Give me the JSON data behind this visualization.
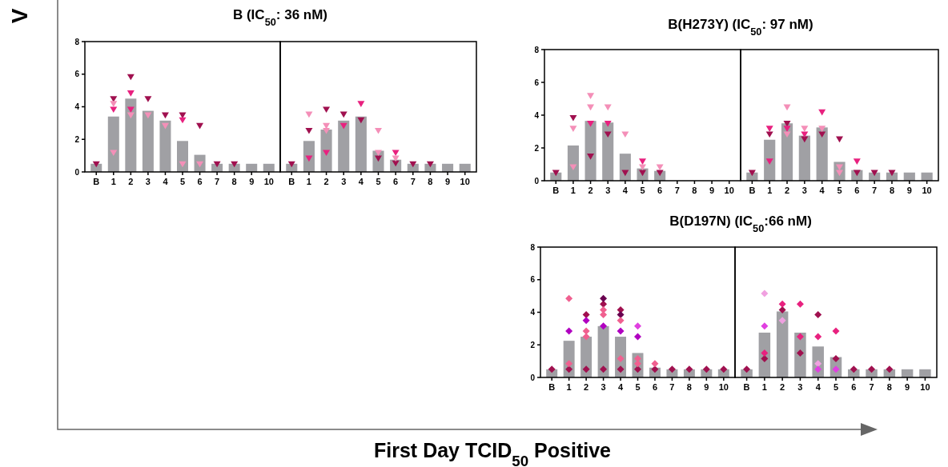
{
  "chart_data": [
    {
      "type": "bar",
      "title": "B (IC$_{50}$: 36 nM)",
      "xlabel": "First Day TCID$_{50}$ Positive",
      "ylabel": "V",
      "categories": [
        "B",
        "1",
        "2",
        "3",
        "4",
        "5",
        "6",
        "7",
        "8",
        "9",
        "10"
      ],
      "ylim": [
        0,
        8
      ],
      "yticks": [
        0,
        2,
        4,
        6,
        8
      ],
      "marker": "triangle",
      "series": [
        {
          "color": "#a0a0a4",
          "values": [
            0.5,
            3.4,
            4.5,
            3.75,
            3.15,
            1.9,
            1.05,
            0.5,
            0.5,
            0.5,
            0.5
          ]
        },
        {
          "type": "scatter",
          "color": "#a0104f",
          "x": [
            "B",
            "1",
            "2",
            "3",
            "4",
            "5",
            "6",
            "7",
            "8"
          ],
          "values": [
            0.5,
            4.5,
            5.85,
            4.5,
            3.5,
            3.5,
            2.85,
            0.5,
            0.5
          ]
        },
        {
          "type": "scatter",
          "color": "#e8217f",
          "x": [
            "1",
            "2",
            "2",
            "5"
          ],
          "values": [
            3.85,
            4.85,
            3.85,
            3.2
          ]
        },
        {
          "type": "scatter",
          "color": "#f48fb8",
          "x": [
            "1",
            "1",
            "2",
            "3",
            "4",
            "5",
            "6"
          ],
          "values": [
            4.2,
            1.2,
            3.5,
            3.5,
            2.85,
            0.5,
            0.5
          ]
        }
      ]
    },
    {
      "type": "bar",
      "categories": [
        "B",
        "1",
        "2",
        "3",
        "4",
        "5",
        "6",
        "7",
        "8",
        "9",
        "10"
      ],
      "ylim": [
        0,
        8
      ],
      "yticks": [
        0,
        2,
        4,
        6,
        8
      ],
      "tick_labels": "x",
      "marker": "triangle",
      "series": [
        {
          "color": "#a0a0a4",
          "values": [
            0.5,
            1.9,
            2.6,
            3.15,
            3.4,
            1.3,
            0.75,
            0.5,
            0.5,
            0.5,
            0.5
          ]
        },
        {
          "type": "scatter",
          "color": "#a0104f",
          "x": [
            "B",
            "1",
            "2",
            "3",
            "4",
            "5",
            "6",
            "7",
            "8"
          ],
          "values": [
            0.5,
            2.55,
            3.85,
            3.55,
            3.2,
            0.85,
            0.55,
            0.5,
            0.5
          ]
        },
        {
          "type": "scatter",
          "color": "#e8217f",
          "x": [
            "1",
            "2",
            "3",
            "4",
            "6"
          ],
          "values": [
            0.85,
            1.2,
            2.85,
            4.2,
            1.2
          ]
        },
        {
          "type": "scatter",
          "color": "#f48fb8",
          "x": [
            "1",
            "2",
            "2",
            "5",
            "5",
            "6"
          ],
          "values": [
            3.55,
            2.85,
            2.55,
            2.55,
            1.2,
            0.85
          ]
        }
      ]
    },
    {
      "type": "bar",
      "title": "B(H273Y) (IC$_{50}$: 97 nM)",
      "categories": [
        "B",
        "1",
        "2",
        "3",
        "4",
        "5",
        "6",
        "7",
        "8",
        "9",
        "10"
      ],
      "ylim": [
        0,
        8
      ],
      "yticks": [
        0,
        2,
        4,
        6,
        8
      ],
      "marker": "triangle",
      "series": [
        {
          "color": "#a0a0a4",
          "values": [
            0.5,
            2.15,
            3.65,
            3.55,
            1.65,
            0.75,
            0.6,
            null,
            null,
            null,
            null
          ]
        },
        {
          "type": "scatter",
          "color": "#a0104f",
          "x": [
            "B",
            "1",
            "2",
            "3",
            "4",
            "5",
            "6"
          ],
          "values": [
            0.5,
            3.85,
            1.5,
            2.85,
            0.5,
            0.5,
            0.5
          ]
        },
        {
          "type": "scatter",
          "color": "#e8217f",
          "x": [
            "2",
            "3",
            "5"
          ],
          "values": [
            3.5,
            3.5,
            1.2
          ]
        },
        {
          "type": "scatter",
          "color": "#f48fb8",
          "x": [
            "1",
            "1",
            "2",
            "2",
            "3",
            "4",
            "5",
            "6"
          ],
          "values": [
            3.2,
            0.85,
            5.2,
            4.5,
            4.5,
            2.85,
            0.85,
            0.85
          ]
        }
      ]
    },
    {
      "type": "bar",
      "categories": [
        "B",
        "1",
        "2",
        "3",
        "4",
        "5",
        "6",
        "7",
        "8",
        "9",
        "10"
      ],
      "ylim": [
        0,
        8
      ],
      "yticks": [
        0,
        2,
        4,
        6,
        8
      ],
      "tick_labels": "x",
      "marker": "triangle",
      "series": [
        {
          "color": "#a0a0a4",
          "values": [
            0.5,
            2.5,
            3.5,
            2.75,
            3.25,
            1.15,
            0.65,
            0.5,
            0.5,
            0.5,
            0.5
          ]
        },
        {
          "type": "scatter",
          "color": "#a0104f",
          "x": [
            "B",
            "1",
            "2",
            "3",
            "4",
            "5",
            "6",
            "7",
            "8"
          ],
          "values": [
            0.5,
            2.85,
            3.5,
            2.55,
            2.85,
            2.55,
            0.5,
            0.5,
            0.5
          ]
        },
        {
          "type": "scatter",
          "color": "#e8217f",
          "x": [
            "1",
            "1",
            "2",
            "3",
            "4",
            "6"
          ],
          "values": [
            3.2,
            1.2,
            3.2,
            2.85,
            4.2,
            1.2
          ]
        },
        {
          "type": "scatter",
          "color": "#f48fb8",
          "x": [
            "2",
            "2",
            "3",
            "4",
            "5",
            "5"
          ],
          "values": [
            4.5,
            2.85,
            3.2,
            3.2,
            0.85,
            0.5
          ]
        }
      ]
    },
    {
      "type": "bar",
      "title": "B(D197N) (IC$_{50}$:66 nM)",
      "categories": [
        "B",
        "1",
        "2",
        "3",
        "4",
        "5",
        "6",
        "7",
        "8",
        "9",
        "10"
      ],
      "ylim": [
        0,
        8
      ],
      "yticks": [
        0,
        2,
        4,
        6,
        8
      ],
      "marker": "diamond",
      "series": [
        {
          "color": "#a0a0a4",
          "values": [
            0.5,
            2.25,
            2.5,
            3.15,
            2.5,
            1.5,
            0.6,
            0.5,
            0.5,
            0.5,
            0.5
          ]
        },
        {
          "type": "scatter",
          "color": "#a0104f",
          "x": [
            "B",
            "1",
            "2",
            "3",
            "4",
            "5",
            "6",
            "7",
            "8",
            "9",
            "10",
            "2",
            "3",
            "4"
          ],
          "values": [
            0.5,
            0.5,
            0.5,
            0.5,
            0.5,
            0.5,
            0.5,
            0.5,
            0.5,
            0.5,
            0.5,
            3.85,
            4.5,
            4.15
          ]
        },
        {
          "type": "scatter",
          "color": "#b000c0",
          "x": [
            "1",
            "2",
            "3",
            "4",
            "5"
          ],
          "values": [
            2.85,
            3.5,
            3.15,
            2.85,
            2.5
          ]
        },
        {
          "type": "scatter",
          "color": "#e040e0",
          "x": [
            "5"
          ],
          "values": [
            3.15
          ]
        },
        {
          "type": "scatter",
          "color": "#6a0050",
          "x": [
            "3",
            "4"
          ],
          "values": [
            4.85,
            3.85
          ]
        },
        {
          "type": "scatter",
          "color": "#f06090",
          "x": [
            "1",
            "1",
            "2",
            "2",
            "3",
            "3",
            "4",
            "4",
            "5",
            "5",
            "6"
          ],
          "values": [
            4.85,
            0.85,
            2.85,
            2.5,
            4.15,
            3.85,
            3.5,
            1.15,
            1.15,
            0.85,
            0.85
          ]
        }
      ]
    },
    {
      "type": "bar",
      "categories": [
        "B",
        "1",
        "2",
        "3",
        "4",
        "5",
        "6",
        "7",
        "8",
        "9",
        "10"
      ],
      "ylim": [
        0,
        8
      ],
      "yticks": [
        0,
        2,
        4,
        6,
        8
      ],
      "tick_labels": "x",
      "marker": "diamond",
      "series": [
        {
          "color": "#a0a0a4",
          "values": [
            0.5,
            2.75,
            4.05,
            2.75,
            1.9,
            1.25,
            0.5,
            0.5,
            0.5,
            0.5,
            0.5
          ]
        },
        {
          "type": "scatter",
          "color": "#a0104f",
          "x": [
            "B",
            "1",
            "2",
            "3",
            "4",
            "5",
            "6",
            "7",
            "8"
          ],
          "values": [
            0.5,
            1.15,
            4.15,
            1.5,
            3.85,
            1.15,
            0.5,
            0.5,
            0.5
          ]
        },
        {
          "type": "scatter",
          "color": "#e8217f",
          "x": [
            "1",
            "2",
            "3",
            "3",
            "4",
            "5"
          ],
          "values": [
            1.5,
            4.5,
            4.5,
            2.5,
            2.5,
            2.85
          ]
        },
        {
          "type": "scatter",
          "color": "#f0a0e0",
          "x": [
            "1",
            "2",
            "4"
          ],
          "values": [
            5.15,
            3.5,
            0.85
          ]
        },
        {
          "type": "scatter",
          "color": "#e040e0",
          "x": [
            "1",
            "4",
            "5"
          ],
          "values": [
            3.15,
            0.5,
            0.5
          ]
        }
      ]
    }
  ]
}
